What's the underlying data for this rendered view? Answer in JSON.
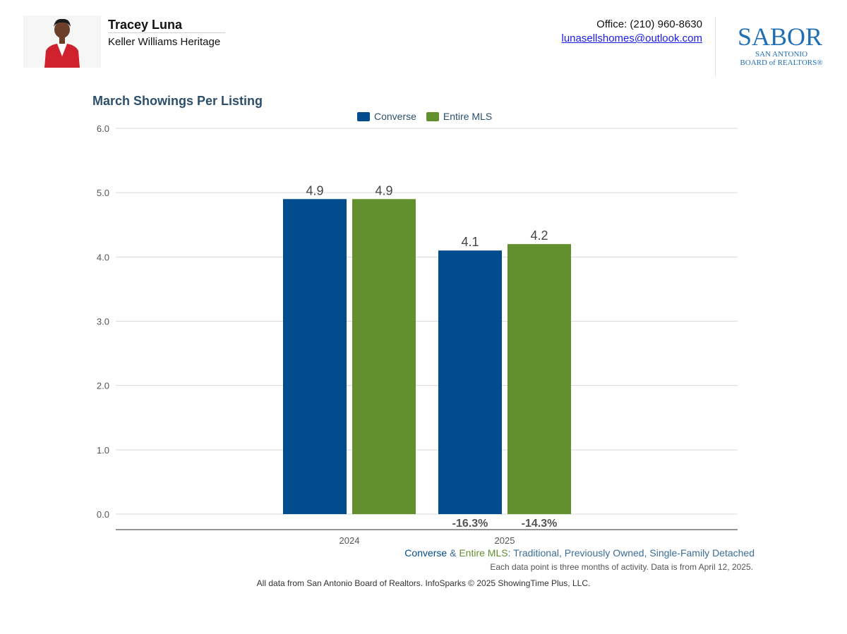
{
  "agent": {
    "name": "Tracey Luna",
    "brokerage": "Keller Williams Heritage",
    "office": "Office: (210) 960-8630",
    "email": "lunasellshomes@outlook.com"
  },
  "logo": {
    "wordmark": "SABOR",
    "line1": "SAN ANTONIO",
    "line2": "BOARD of REALTORS®"
  },
  "colors": {
    "converse": "#004c8c",
    "mls": "#62902e",
    "title": "#2c4f6b",
    "grid": "#d9d9d9",
    "axis": "#555555"
  },
  "chart_data": {
    "type": "bar",
    "title": "March Showings Per Listing",
    "categories": [
      "2024",
      "2025"
    ],
    "series": [
      {
        "name": "Converse",
        "values": [
          4.9,
          4.1
        ],
        "labels": [
          "4.9",
          "4.1"
        ],
        "changes": [
          "",
          "-16.3%"
        ]
      },
      {
        "name": "Entire MLS",
        "values": [
          4.9,
          4.2
        ],
        "labels": [
          "4.9",
          "4.2"
        ],
        "changes": [
          "",
          "-14.3%"
        ]
      }
    ],
    "ylim": [
      0,
      6
    ],
    "yticks": [
      "0.0",
      "1.0",
      "2.0",
      "3.0",
      "4.0",
      "5.0",
      "6.0"
    ],
    "legend_position": "top-center",
    "grid": true,
    "xlabel": "",
    "ylabel": ""
  },
  "caption": {
    "series1": "Converse",
    "amp": " & ",
    "series2": "Entire MLS",
    "colon": ": ",
    "filter1": "Traditional",
    "sep1": ", ",
    "filter2": "Previously Owned",
    "sep2": ", ",
    "filter3": "Single-Family Detached",
    "note": "Each data point is three months of activity. Data is from April 12, 2025."
  },
  "footer": "All data from San Antonio Board of Realtors. InfoSparks © 2025 ShowingTime Plus, LLC."
}
